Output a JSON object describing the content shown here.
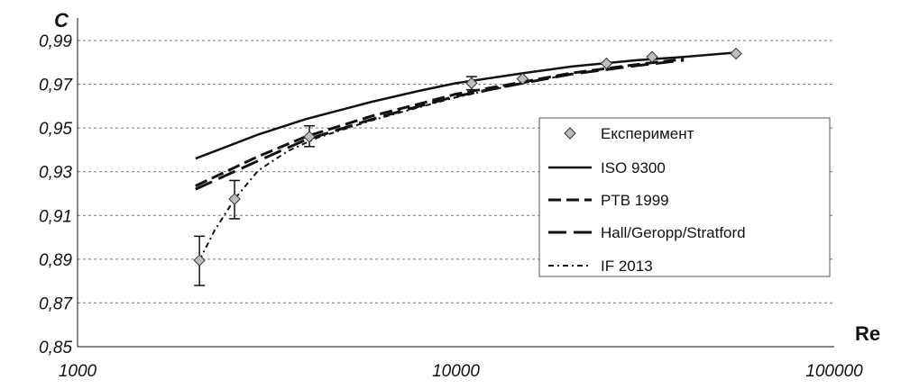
{
  "chart_data": {
    "type": "scatter",
    "title": "",
    "xlabel": "Re",
    "ylabel": "C",
    "x_scale": "log",
    "xlim": [
      1000,
      100000
    ],
    "ylim": [
      0.85,
      0.995
    ],
    "x_ticks": [
      "1000",
      "10000",
      "100000"
    ],
    "y_ticks": [
      "0,85",
      "0,87",
      "0,89",
      "0,91",
      "0,93",
      "0,95",
      "0,97",
      "0,99"
    ],
    "grid": "horizontal dotted",
    "legend_position": "center-right",
    "series": [
      {
        "name": "Експеримент",
        "style": "markers",
        "color": "#aaaaaa",
        "points": [
          {
            "x": 2100,
            "y": 0.8895,
            "err_low": 0.878,
            "err_high": 0.9005
          },
          {
            "x": 2600,
            "y": 0.9175,
            "err_low": 0.9085,
            "err_high": 0.926
          },
          {
            "x": 4100,
            "y": 0.946,
            "err_low": 0.9415,
            "err_high": 0.951
          },
          {
            "x": 11000,
            "y": 0.9705,
            "err_low": 0.9675,
            "err_high": 0.9735
          },
          {
            "x": 15000,
            "y": 0.9725
          },
          {
            "x": 25000,
            "y": 0.9795
          },
          {
            "x": 33000,
            "y": 0.9825
          },
          {
            "x": 55000,
            "y": 0.984
          }
        ]
      },
      {
        "name": "ISO 9300",
        "style": "solid",
        "color": "#111111",
        "x": [
          2050,
          3000,
          4000,
          6000,
          8000,
          10000,
          15000,
          20000,
          30000,
          40000,
          55000
        ],
        "y": [
          0.936,
          0.947,
          0.954,
          0.962,
          0.967,
          0.9705,
          0.975,
          0.978,
          0.981,
          0.9825,
          0.9845
        ]
      },
      {
        "name": "PTB 1999",
        "style": "dashed",
        "color": "#111111",
        "x": [
          2050,
          3000,
          4000,
          6000,
          8000,
          10000,
          15000,
          20000,
          30000,
          40000
        ],
        "y": [
          0.9235,
          0.937,
          0.946,
          0.9555,
          0.961,
          0.9655,
          0.971,
          0.975,
          0.979,
          0.9815
        ]
      },
      {
        "name": "Hall/Geropp/Stratford",
        "style": "long-dashed",
        "color": "#111111",
        "x": [
          2050,
          3000,
          4000,
          6000,
          8000,
          10000,
          15000,
          20000,
          30000,
          40000
        ],
        "y": [
          0.922,
          0.935,
          0.9445,
          0.954,
          0.96,
          0.9645,
          0.9705,
          0.9745,
          0.9785,
          0.981
        ]
      },
      {
        "name": "IF 2013",
        "style": "dash-dot",
        "color": "#111111",
        "x": [
          2100,
          2300,
          2600,
          3000,
          3600,
          4300,
          6000,
          8000,
          10000,
          15000,
          20000
        ],
        "y": [
          0.8895,
          0.903,
          0.9175,
          0.9305,
          0.9395,
          0.9455,
          0.9535,
          0.9595,
          0.964,
          0.9705,
          0.9745
        ]
      }
    ]
  }
}
